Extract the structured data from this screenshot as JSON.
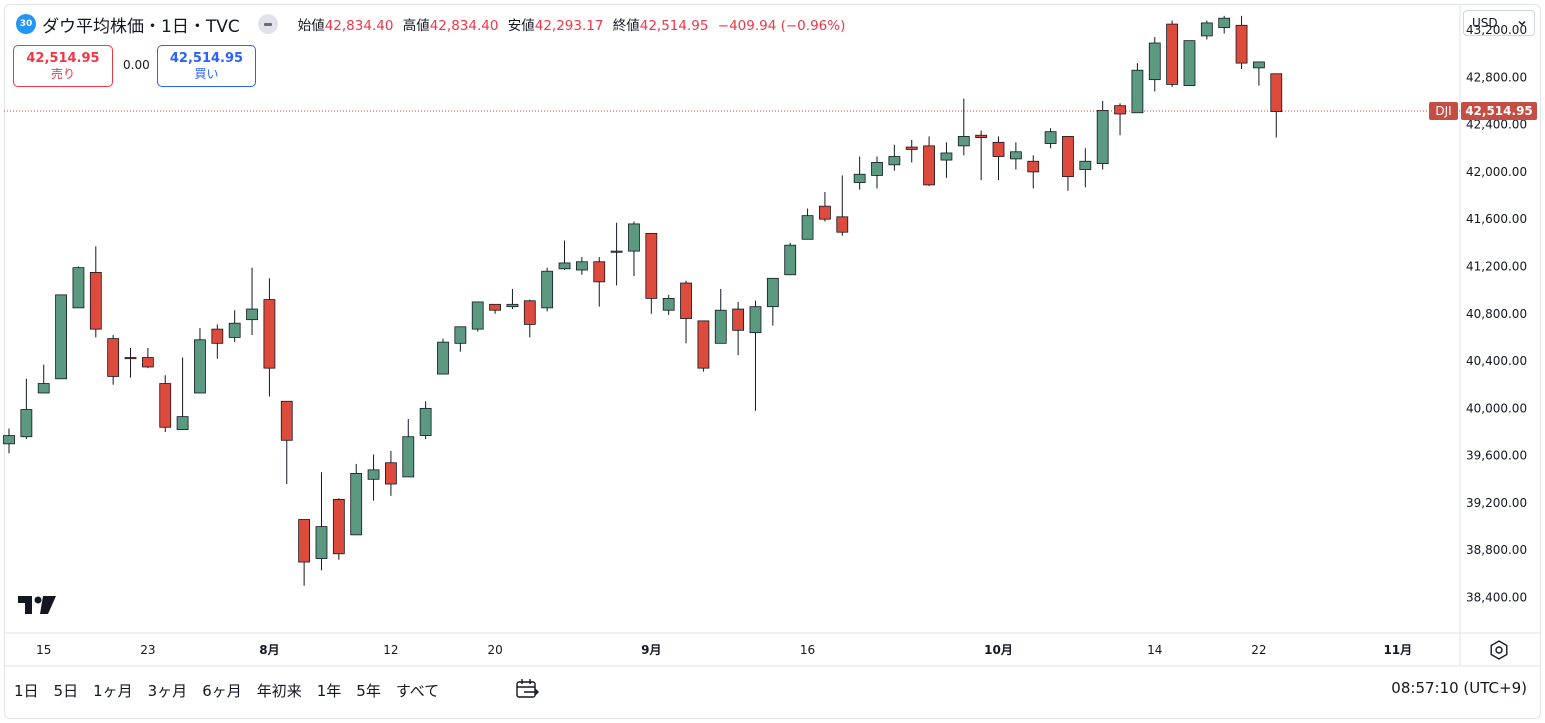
{
  "header": {
    "badge": "30",
    "title": "ダウ平均株価・1日・TVC",
    "ohlc": [
      {
        "label": "始値",
        "value": "42,834.40"
      },
      {
        "label": "高値",
        "value": "42,834.40"
      },
      {
        "label": "安値",
        "value": "42,293.17"
      },
      {
        "label": "終値",
        "value": "42,514.95"
      }
    ],
    "change": "−409.94 (−0.96%)"
  },
  "trade": {
    "sell_price": "42,514.95",
    "sell_label": "売り",
    "spread": "0.00",
    "buy_price": "42,514.95",
    "buy_label": "買い"
  },
  "currency": "USD",
  "icons": {
    "collapse": "minus-icon",
    "chevron": "chevron-down-icon",
    "logo": "tradingview-logo-icon",
    "settings": "settings-icon",
    "compare": "calendar-range-icon"
  },
  "colors": {
    "up": "#5b9a80",
    "down": "#dc4b3b",
    "badge": "#2196f3",
    "price_line": "#c44e44"
  },
  "chart_data": {
    "type": "candlestick",
    "symbol_label": "DJI",
    "last_price": 42514.95,
    "last_price_label": "42,514.95",
    "ylim": [
      38100,
      43420
    ],
    "yticks": [
      38400,
      38800,
      39200,
      39600,
      40000,
      40400,
      40800,
      41200,
      41600,
      42000,
      42400,
      42800,
      43200
    ],
    "ytick_labels": [
      "38,400.00",
      "38,800.00",
      "39,200.00",
      "39,600.00",
      "40,000.00",
      "40,400.00",
      "40,800.00",
      "41,200.00",
      "41,600.00",
      "42,000.00",
      "42,400.00",
      "42,800.00",
      "43,200.00"
    ],
    "xticks": [
      {
        "label": "15",
        "i": 2
      },
      {
        "label": "23",
        "i": 8
      },
      {
        "label": "8月",
        "i": 15
      },
      {
        "label": "12",
        "i": 22
      },
      {
        "label": "20",
        "i": 28
      },
      {
        "label": "9月",
        "i": 37
      },
      {
        "label": "16",
        "i": 46
      },
      {
        "label": "10月",
        "i": 57
      },
      {
        "label": "14",
        "i": 66
      },
      {
        "label": "22",
        "i": 72
      },
      {
        "label": "11月",
        "i": 80
      }
    ],
    "candles": [
      {
        "o": 39700,
        "h": 39830,
        "l": 39620,
        "c": 39770
      },
      {
        "o": 39760,
        "h": 40250,
        "l": 39740,
        "c": 39990
      },
      {
        "o": 40130,
        "h": 40370,
        "l": 40130,
        "c": 40210
      },
      {
        "o": 40250,
        "h": 40960,
        "l": 40250,
        "c": 40960
      },
      {
        "o": 40850,
        "h": 41200,
        "l": 40850,
        "c": 41190
      },
      {
        "o": 41150,
        "h": 41370,
        "l": 40600,
        "c": 40670
      },
      {
        "o": 40590,
        "h": 40620,
        "l": 40200,
        "c": 40270
      },
      {
        "o": 40430,
        "h": 40510,
        "l": 40260,
        "c": 40420
      },
      {
        "o": 40430,
        "h": 40510,
        "l": 40340,
        "c": 40350
      },
      {
        "o": 40210,
        "h": 40280,
        "l": 39800,
        "c": 39840
      },
      {
        "o": 39820,
        "h": 40430,
        "l": 39820,
        "c": 39930
      },
      {
        "o": 40130,
        "h": 40680,
        "l": 40130,
        "c": 40580
      },
      {
        "o": 40670,
        "h": 40710,
        "l": 40420,
        "c": 40550
      },
      {
        "o": 40600,
        "h": 40830,
        "l": 40560,
        "c": 40720
      },
      {
        "o": 40750,
        "h": 41190,
        "l": 40620,
        "c": 40840
      },
      {
        "o": 40920,
        "h": 41100,
        "l": 40100,
        "c": 40340
      },
      {
        "o": 40060,
        "h": 40060,
        "l": 39360,
        "c": 39730
      },
      {
        "o": 39060,
        "h": 39060,
        "l": 38500,
        "c": 38700
      },
      {
        "o": 38730,
        "h": 39460,
        "l": 38630,
        "c": 39000
      },
      {
        "o": 39230,
        "h": 39240,
        "l": 38720,
        "c": 38770
      },
      {
        "o": 38930,
        "h": 39530,
        "l": 38930,
        "c": 39450
      },
      {
        "o": 39400,
        "h": 39610,
        "l": 39220,
        "c": 39480
      },
      {
        "o": 39540,
        "h": 39640,
        "l": 39260,
        "c": 39360
      },
      {
        "o": 39420,
        "h": 39910,
        "l": 39420,
        "c": 39760
      },
      {
        "o": 39770,
        "h": 40060,
        "l": 39740,
        "c": 40000
      },
      {
        "o": 40290,
        "h": 40590,
        "l": 40290,
        "c": 40560
      },
      {
        "o": 40550,
        "h": 40690,
        "l": 40480,
        "c": 40690
      },
      {
        "o": 40670,
        "h": 40900,
        "l": 40650,
        "c": 40900
      },
      {
        "o": 40880,
        "h": 40880,
        "l": 40800,
        "c": 40830
      },
      {
        "o": 40860,
        "h": 41010,
        "l": 40840,
        "c": 40880
      },
      {
        "o": 40910,
        "h": 40920,
        "l": 40600,
        "c": 40710
      },
      {
        "o": 40850,
        "h": 41190,
        "l": 40820,
        "c": 41160
      },
      {
        "o": 41180,
        "h": 41420,
        "l": 41170,
        "c": 41230
      },
      {
        "o": 41170,
        "h": 41280,
        "l": 41130,
        "c": 41240
      },
      {
        "o": 41240,
        "h": 41280,
        "l": 40860,
        "c": 41070
      },
      {
        "o": 41330,
        "h": 41570,
        "l": 41040,
        "c": 41320
      },
      {
        "o": 41330,
        "h": 41580,
        "l": 41120,
        "c": 41560
      },
      {
        "o": 41480,
        "h": 41480,
        "l": 40800,
        "c": 40930
      },
      {
        "o": 40830,
        "h": 40960,
        "l": 40790,
        "c": 40930
      },
      {
        "o": 41060,
        "h": 41080,
        "l": 40550,
        "c": 40760
      },
      {
        "o": 40740,
        "h": 40740,
        "l": 40310,
        "c": 40340
      },
      {
        "o": 40550,
        "h": 41010,
        "l": 40550,
        "c": 40830
      },
      {
        "o": 40840,
        "h": 40900,
        "l": 40450,
        "c": 40660
      },
      {
        "o": 40640,
        "h": 40910,
        "l": 39980,
        "c": 40860
      },
      {
        "o": 40860,
        "h": 41100,
        "l": 40700,
        "c": 41100
      },
      {
        "o": 41130,
        "h": 41400,
        "l": 41130,
        "c": 41380
      },
      {
        "o": 41430,
        "h": 41690,
        "l": 41430,
        "c": 41630
      },
      {
        "o": 41710,
        "h": 41830,
        "l": 41580,
        "c": 41600
      },
      {
        "o": 41620,
        "h": 41970,
        "l": 41460,
        "c": 41490
      },
      {
        "o": 41910,
        "h": 42130,
        "l": 41850,
        "c": 41980
      },
      {
        "o": 41970,
        "h": 42130,
        "l": 41860,
        "c": 42080
      },
      {
        "o": 42060,
        "h": 42230,
        "l": 42010,
        "c": 42130
      },
      {
        "o": 42210,
        "h": 42270,
        "l": 42080,
        "c": 42190
      },
      {
        "o": 42220,
        "h": 42300,
        "l": 41880,
        "c": 41890
      },
      {
        "o": 42100,
        "h": 42250,
        "l": 41950,
        "c": 42160
      },
      {
        "o": 42220,
        "h": 42620,
        "l": 42140,
        "c": 42300
      },
      {
        "o": 42310,
        "h": 42350,
        "l": 41930,
        "c": 42290
      },
      {
        "o": 42250,
        "h": 42300,
        "l": 41930,
        "c": 42130
      },
      {
        "o": 42110,
        "h": 42250,
        "l": 42020,
        "c": 42170
      },
      {
        "o": 42090,
        "h": 42140,
        "l": 41860,
        "c": 42000
      },
      {
        "o": 42240,
        "h": 42370,
        "l": 42200,
        "c": 42340
      },
      {
        "o": 42300,
        "h": 42300,
        "l": 41840,
        "c": 41960
      },
      {
        "o": 42020,
        "h": 42200,
        "l": 41870,
        "c": 42090
      },
      {
        "o": 42070,
        "h": 42600,
        "l": 42020,
        "c": 42520
      },
      {
        "o": 42560,
        "h": 42580,
        "l": 42310,
        "c": 42490
      },
      {
        "o": 42500,
        "h": 42920,
        "l": 42500,
        "c": 42860
      },
      {
        "o": 42780,
        "h": 43140,
        "l": 42680,
        "c": 43090
      },
      {
        "o": 43250,
        "h": 43280,
        "l": 42720,
        "c": 42740
      },
      {
        "o": 42730,
        "h": 43100,
        "l": 42730,
        "c": 43110
      },
      {
        "o": 43150,
        "h": 43280,
        "l": 43120,
        "c": 43260
      },
      {
        "o": 43220,
        "h": 43320,
        "l": 43170,
        "c": 43300
      },
      {
        "o": 43240,
        "h": 43320,
        "l": 42870,
        "c": 42920
      },
      {
        "o": 42880,
        "h": 42930,
        "l": 42730,
        "c": 42930
      },
      {
        "o": 42830,
        "h": 42830,
        "l": 42290,
        "c": 42510
      }
    ]
  },
  "bottom": {
    "ranges": [
      "1日",
      "5日",
      "1ヶ月",
      "3ヶ月",
      "6ヶ月",
      "年初来",
      "1年",
      "5年",
      "すべて"
    ],
    "clock": "08:57:10 (UTC+9)"
  }
}
